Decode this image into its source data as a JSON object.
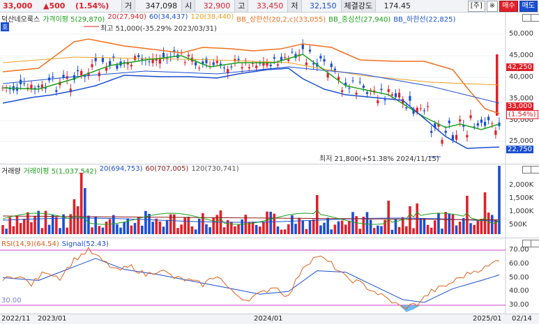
{
  "topbar": {
    "price": "33,000",
    "change": "▲500",
    "change_pct": "(1.54%)",
    "volume_label": "거",
    "volume": "347,098",
    "open_label": "시",
    "open": "32,900",
    "high_label": "고",
    "high": "33,450",
    "low_label": "저",
    "low": "32,150",
    "strength_label": "체결강도",
    "strength": "174.45",
    "btn_ju": "[주]",
    "btn_icon": "※",
    "btn_buy": "매수",
    "btn_sell": "매도"
  },
  "price_panel": {
    "stock_name": "덕산네오룩스",
    "legend": [
      {
        "label": "가격이평 5(29,870)",
        "color": "#1aa01a"
      },
      {
        "label": "20(27,940)",
        "color": "#e0202a"
      },
      {
        "label": "60(34,437)",
        "color": "#1a4fd1"
      },
      {
        "label": "120(38,440)",
        "color": "#e8a020"
      },
      {
        "label": "BB_상한선(20,2,c)(33,055)",
        "color": "#f07020"
      },
      {
        "label": "BB_중심선(27,940)",
        "color": "#1aa01a"
      },
      {
        "label": "BB_하한선(22,825)",
        "color": "#1a4fd1"
      }
    ],
    "ho_label": "호",
    "high_annotation": "최고 51,000(-35.29% 2023/03/31)",
    "low_annotation": "최저 21,800(+51.38% 2024/11/15)",
    "y_ticks": [
      "50,000",
      "45,000",
      "40,000",
      "35,000",
      "30,000",
      "25,000"
    ],
    "tag_upper": "42,250",
    "tag_current": "33,000",
    "tag_current_pct": "(1.54%)",
    "tag_lower": "22,750"
  },
  "volume_panel": {
    "legend": [
      {
        "label": "거래량",
        "color": "#222"
      },
      {
        "label": "거래이평 5(1,037,542)",
        "color": "#1aa01a"
      },
      {
        "label": "20(694,753)",
        "color": "#1a4fd1"
      },
      {
        "label": "60(707,005)",
        "color": "#8a1a1a"
      },
      {
        "label": "120(730,741)",
        "color": "#555"
      }
    ],
    "y_ticks": [
      "2,000K",
      "1,500K",
      "1,000K",
      "500K"
    ]
  },
  "rsi_panel": {
    "legend": [
      {
        "label": "RSI(14,9)(64.54)",
        "color": "#e0601a"
      },
      {
        "label": "Signal(52.43)",
        "color": "#1a4fd1"
      }
    ],
    "y_ticks": [
      "70.00",
      "60.00",
      "50.00",
      "40.00",
      "30.00"
    ],
    "left_label": "30.00"
  },
  "date_axis": [
    "2022/11",
    "2023/01",
    "2024/01",
    "2025/01",
    "02/14"
  ],
  "colors": {
    "up": "#e0202a",
    "down": "#1a4fd1",
    "bb_upper": "#f07020",
    "bb_mid": "#1aa01a",
    "bb_lower": "#1a4fd1",
    "ma120": "#e8a020",
    "rsi": "#e0601a",
    "signal": "#1a4fd1"
  }
}
